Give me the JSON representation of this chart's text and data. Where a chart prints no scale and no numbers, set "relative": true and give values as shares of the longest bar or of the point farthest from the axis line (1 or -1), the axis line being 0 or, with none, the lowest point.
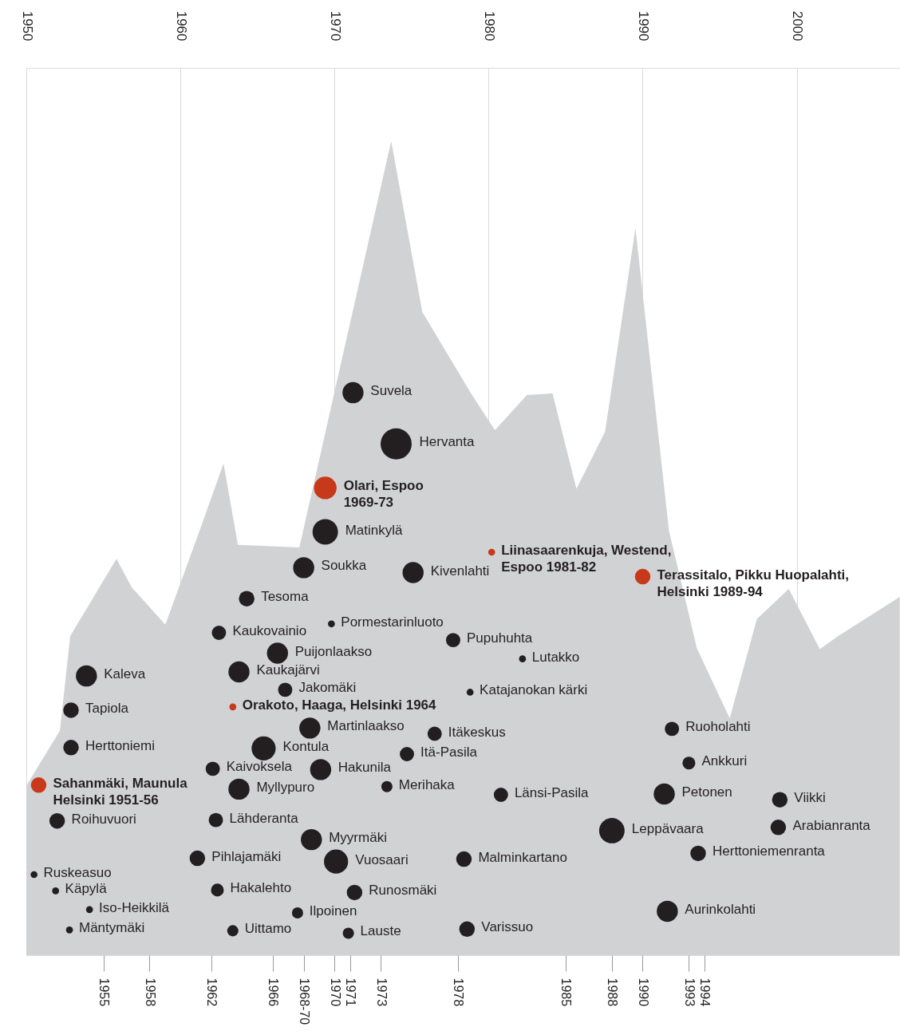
{
  "chart_data": {
    "type": "bubble",
    "relative": true,
    "grid": "x",
    "xlim": [
      1950,
      2006.7
    ],
    "x2lim": [
      1950,
      2006.7
    ],
    "x2ticks": [
      1950,
      1960,
      1970,
      1980,
      1990,
      2000
    ],
    "xticks": [
      1955,
      1958,
      1962,
      1966,
      {
        "value": 1968,
        "label": "1968-70"
      },
      1970,
      1971,
      1973,
      1978,
      1985,
      1988,
      1990,
      1993,
      1994
    ],
    "series": [
      {
        "type": "area",
        "color": "#d1d2d4",
        "x": [
          1950,
          1952.18,
          1952.85,
          1955.85,
          1956.84,
          1959.02,
          1961.14,
          1962.8,
          1963.73,
          1967.72,
          1973.68,
          1975.7,
          1978.86,
          1980.41,
          1982.49,
          1984.15,
          1985.7,
          1987.56,
          1989.53,
          1991.71,
          1993.52,
          1995.65,
          1997.41,
          1999.48,
          2001.5,
          2002.69,
          2006.68
        ],
        "values": [
          0.208,
          0.276,
          0.392,
          0.487,
          0.452,
          0.406,
          0.516,
          0.604,
          0.504,
          0.501,
          1.0,
          0.79,
          0.69,
          0.645,
          0.688,
          0.69,
          0.573,
          0.643,
          0.893,
          0.521,
          0.377,
          0.291,
          0.413,
          0.45,
          0.376,
          0.392,
          0.44
        ]
      },
      {
        "color": "#231f20",
        "x": [
          1971.2,
          1974.0,
          1969.4,
          1968.0,
          1975.1,
          1964.3,
          1969.8,
          1962.5,
          1966.3,
          1977.7,
          1982.2,
          1953.9,
          1963.8,
          1966.8,
          1978.8,
          1952.9,
          1968.4,
          1976.5,
          1991.9,
          1952.9,
          1965.4,
          1974.7,
          1993.0,
          1962.1,
          1969.1,
          1963.8,
          1973.4,
          1980.8,
          1991.4,
          1998.9,
          1952.0,
          1962.3,
          1988.0,
          1998.8,
          1968.5,
          1961.1,
          1970.1,
          1978.4,
          1993.6,
          1950.5,
          1951.9,
          1962.4,
          1971.3,
          1954.1,
          1967.6,
          1991.6,
          1952.8,
          1963.4,
          1970.9,
          1978.6
        ],
        "values": [
          0.691,
          0.628,
          0.52,
          0.476,
          0.47,
          0.438,
          0.407,
          0.396,
          0.371,
          0.387,
          0.364,
          0.343,
          0.348,
          0.326,
          0.323,
          0.301,
          0.279,
          0.272,
          0.278,
          0.255,
          0.254,
          0.247,
          0.236,
          0.229,
          0.228,
          0.204,
          0.207,
          0.197,
          0.198,
          0.191,
          0.165,
          0.166,
          0.153,
          0.157,
          0.142,
          0.119,
          0.115,
          0.118,
          0.125,
          0.099,
          0.079,
          0.08,
          0.077,
          0.056,
          0.052,
          0.054,
          0.031,
          0.03,
          0.027,
          0.032
        ],
        "sizes": [
          0.46,
          1,
          0.67,
          0.46,
          0.46,
          0.25,
          0.05,
          0.21,
          0.46,
          0.21,
          0.05,
          0.46,
          0.46,
          0.21,
          0.05,
          0.25,
          0.46,
          0.21,
          0.21,
          0.25,
          0.6,
          0.21,
          0.17,
          0.21,
          0.46,
          0.46,
          0.13,
          0.21,
          0.46,
          0.25,
          0.25,
          0.21,
          0.67,
          0.25,
          0.46,
          0.25,
          0.6,
          0.25,
          0.25,
          0.05,
          0.05,
          0.17,
          0.25,
          0.05,
          0.13,
          0.46,
          0.05,
          0.13,
          0.13,
          0.25
        ]
      },
      {
        "color": "#c8381b",
        "x": [
          1969.4,
          1980.2,
          1990.0,
          1963.4,
          1950.8
        ],
        "values": [
          0.574,
          0.495,
          0.465,
          0.305,
          0.209
        ],
        "sizes": [
          0.53,
          0.05,
          0.25,
          0.05,
          0.25
        ]
      }
    ],
    "annotations": [
      {
        "text": "Suvela",
        "x": 1971.2,
        "y": 0.691
      },
      {
        "text": "Hervanta",
        "x": 1974.0,
        "y": 0.628
      },
      {
        "text": "Matinkylä",
        "x": 1969.4,
        "y": 0.52
      },
      {
        "text": "Soukka",
        "x": 1968.0,
        "y": 0.476
      },
      {
        "text": "Kivenlahti",
        "x": 1975.1,
        "y": 0.47
      },
      {
        "text": "Tesoma",
        "x": 1964.3,
        "y": 0.438
      },
      {
        "text": "Pormestarinluoto",
        "x": 1969.8,
        "y": 0.407
      },
      {
        "text": "Kaukovainio",
        "x": 1962.5,
        "y": 0.396
      },
      {
        "text": "Puijonlaakso",
        "x": 1966.3,
        "y": 0.371
      },
      {
        "text": "Pupuhuhta",
        "x": 1977.7,
        "y": 0.387
      },
      {
        "text": "Lutakko",
        "x": 1982.2,
        "y": 0.364
      },
      {
        "text": "Kaleva",
        "x": 1953.9,
        "y": 0.343
      },
      {
        "text": "Kaukajärvi",
        "x": 1963.8,
        "y": 0.348
      },
      {
        "text": "Jakomäki",
        "x": 1966.8,
        "y": 0.326
      },
      {
        "text": "Katajanokan kärki",
        "x": 1978.8,
        "y": 0.323
      },
      {
        "text": "Tapiola",
        "x": 1952.9,
        "y": 0.301
      },
      {
        "text": "Martinlaakso",
        "x": 1968.4,
        "y": 0.279
      },
      {
        "text": "Itäkeskus",
        "x": 1976.5,
        "y": 0.272
      },
      {
        "text": "Ruoholahti",
        "x": 1991.9,
        "y": 0.278
      },
      {
        "text": "Herttoniemi",
        "x": 1952.9,
        "y": 0.255
      },
      {
        "text": "Kontula",
        "x": 1965.4,
        "y": 0.254
      },
      {
        "text": "Itä-Pasila",
        "x": 1974.7,
        "y": 0.247
      },
      {
        "text": "Ankkuri",
        "x": 1993.0,
        "y": 0.236
      },
      {
        "text": "Kaivoksela",
        "x": 1962.1,
        "y": 0.229
      },
      {
        "text": "Hakunila",
        "x": 1969.1,
        "y": 0.228
      },
      {
        "text": "Myllypuro",
        "x": 1963.8,
        "y": 0.204
      },
      {
        "text": "Merihaka",
        "x": 1973.4,
        "y": 0.207
      },
      {
        "text": "Länsi-Pasila",
        "x": 1980.8,
        "y": 0.197
      },
      {
        "text": "Petonen",
        "x": 1991.4,
        "y": 0.198
      },
      {
        "text": "Viikki",
        "x": 1998.9,
        "y": 0.191
      },
      {
        "text": "Roihuvuori",
        "x": 1952.0,
        "y": 0.165
      },
      {
        "text": "Lähderanta",
        "x": 1962.3,
        "y": 0.166
      },
      {
        "text": "Leppävaara",
        "x": 1988.0,
        "y": 0.153
      },
      {
        "text": "Arabianranta",
        "x": 1998.8,
        "y": 0.157
      },
      {
        "text": "Myyrmäki",
        "x": 1968.5,
        "y": 0.142
      },
      {
        "text": "Pihlajamäki",
        "x": 1961.1,
        "y": 0.119
      },
      {
        "text": "Vuosaari",
        "x": 1970.1,
        "y": 0.115
      },
      {
        "text": "Malminkartano",
        "x": 1978.4,
        "y": 0.118
      },
      {
        "text": "Herttoniemenranta",
        "x": 1993.6,
        "y": 0.125
      },
      {
        "text": "Ruskeasuo",
        "x": 1950.5,
        "y": 0.099
      },
      {
        "text": "Käpylä",
        "x": 1951.9,
        "y": 0.079
      },
      {
        "text": "Hakalehto",
        "x": 1962.4,
        "y": 0.08
      },
      {
        "text": "Runosmäki",
        "x": 1971.3,
        "y": 0.077
      },
      {
        "text": "Iso-Heikkilä",
        "x": 1954.1,
        "y": 0.056
      },
      {
        "text": "Ilpoinen",
        "x": 1967.6,
        "y": 0.052
      },
      {
        "text": "Aurinkolahti",
        "x": 1991.6,
        "y": 0.054
      },
      {
        "text": "Mäntymäki",
        "x": 1952.8,
        "y": 0.031
      },
      {
        "text": "Uittamo",
        "x": 1963.4,
        "y": 0.03
      },
      {
        "text": "Lauste",
        "x": 1970.9,
        "y": 0.027
      },
      {
        "text": "Varissuo",
        "x": 1978.6,
        "y": 0.032
      },
      {
        "text": "Olari, Espoo\n1969-73",
        "x": 1969.4,
        "y": 0.574
      },
      {
        "text": "Liinasaarenkuja, Westend,\nEspoo 1981-82",
        "x": 1980.2,
        "y": 0.495
      },
      {
        "text": "Terassitalo, Pikku Huopalahti,\nHelsinki 1989-94",
        "x": 1990.0,
        "y": 0.465
      },
      {
        "text": "Orakoto, Haaga, Helsinki 1964",
        "x": 1963.4,
        "y": 0.305
      },
      {
        "text": "Sahanmäki, Maunula\nHelsinki 1951-56",
        "x": 1950.8,
        "y": 0.209
      }
    ]
  }
}
